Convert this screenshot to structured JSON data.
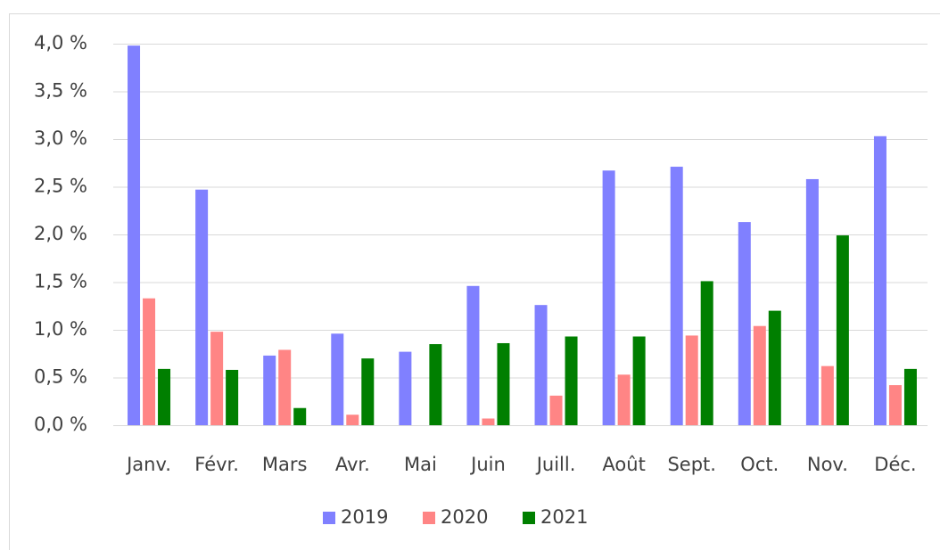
{
  "chart_data": {
    "type": "bar",
    "categories": [
      "Janv.",
      "Févr.",
      "Mars",
      "Avr.",
      "Mai",
      "Juin",
      "Juill.",
      "Août",
      "Sept.",
      "Oct.",
      "Nov.",
      "Déc."
    ],
    "series": [
      {
        "name": "2019",
        "color": "#8080ff",
        "values": [
          3.98,
          2.47,
          0.73,
          0.96,
          0.77,
          1.46,
          1.26,
          2.67,
          2.71,
          2.13,
          2.58,
          3.03
        ]
      },
      {
        "name": "2020",
        "color": "#ff8585",
        "values": [
          1.33,
          0.98,
          0.79,
          0.11,
          null,
          0.07,
          0.31,
          0.53,
          0.94,
          1.04,
          0.62,
          0.42
        ]
      },
      {
        "name": "2021",
        "color": "#007f00",
        "values": [
          0.59,
          0.58,
          0.18,
          0.7,
          0.85,
          0.86,
          0.93,
          0.93,
          1.51,
          1.2,
          1.99,
          0.59
        ]
      }
    ],
    "ylim": [
      0,
      4
    ],
    "yticks": [
      {
        "value": 0,
        "label": "0,0 %"
      },
      {
        "value": 0.5,
        "label": "0,5 %"
      },
      {
        "value": 1,
        "label": "1,0 %"
      },
      {
        "value": 1.5,
        "label": "1,5 %"
      },
      {
        "value": 2,
        "label": "2,0 %"
      },
      {
        "value": 2.5,
        "label": "2,5 %"
      },
      {
        "value": 3,
        "label": "3,0 %"
      },
      {
        "value": 3.5,
        "label": "3,5 %"
      },
      {
        "value": 4,
        "label": "4,0 %"
      }
    ],
    "grid": true,
    "legend": "bottom"
  }
}
